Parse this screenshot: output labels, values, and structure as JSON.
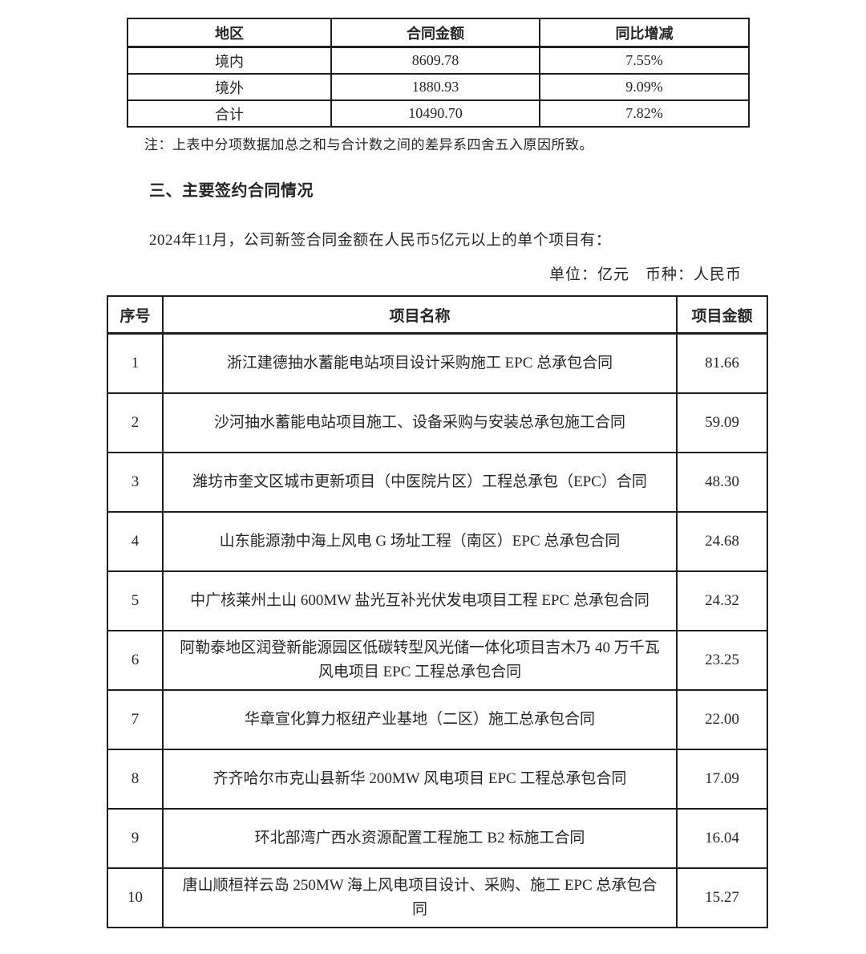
{
  "page": {
    "background": "#ffffff",
    "text_color": "#262626",
    "border_color": "#1f1f1f"
  },
  "summary_table": {
    "headers": [
      "地区",
      "合同金额",
      "同比增减"
    ],
    "rows": [
      {
        "region": "境内",
        "amount": "8609.78",
        "yoy": "7.55%"
      },
      {
        "region": "境外",
        "amount": "1880.93",
        "yoy": "9.09%"
      },
      {
        "region": "合计",
        "amount": "10490.70",
        "yoy": "7.82%"
      }
    ],
    "note": "注：上表中分项数据加总之和与合计数之间的差异系四舍五入原因所致。"
  },
  "section": {
    "heading": "三、主要签约合同情况",
    "intro": "2024年11月，公司新签合同金额在人民币5亿元以上的单个项目有：",
    "unit_line": "单位：亿元　币种：人民币"
  },
  "projects_table": {
    "headers": [
      "序号",
      "项目名称",
      "项目金额"
    ],
    "rows": [
      {
        "no": "1",
        "name": "浙江建德抽水蓄能电站项目设计采购施工 EPC 总承包合同",
        "amount": "81.66"
      },
      {
        "no": "2",
        "name": "沙河抽水蓄能电站项目施工、设备采购与安装总承包施工合同",
        "amount": "59.09"
      },
      {
        "no": "3",
        "name": "潍坊市奎文区城市更新项目（中医院片区）工程总承包（EPC）合同",
        "amount": "48.30"
      },
      {
        "no": "4",
        "name": "山东能源渤中海上风电 G 场址工程（南区）EPC 总承包合同",
        "amount": "24.68"
      },
      {
        "no": "5",
        "name": "中广核莱州土山 600MW 盐光互补光伏发电项目工程 EPC 总承包合同",
        "amount": "24.32"
      },
      {
        "no": "6",
        "name": "阿勒泰地区润登新能源园区低碳转型风光储一体化项目吉木乃 40 万千瓦风电项目 EPC 工程总承包合同",
        "amount": "23.25"
      },
      {
        "no": "7",
        "name": "华章宣化算力枢纽产业基地（二区）施工总承包合同",
        "amount": "22.00"
      },
      {
        "no": "8",
        "name": "齐齐哈尔市克山县新华 200MW 风电项目 EPC 工程总承包合同",
        "amount": "17.09"
      },
      {
        "no": "9",
        "name": "环北部湾广西水资源配置工程施工 B2 标施工合同",
        "amount": "16.04"
      },
      {
        "no": "10",
        "name": "唐山顺桓祥云岛 250MW 海上风电项目设计、采购、施工 EPC 总承包合同",
        "amount": "15.27"
      }
    ]
  }
}
